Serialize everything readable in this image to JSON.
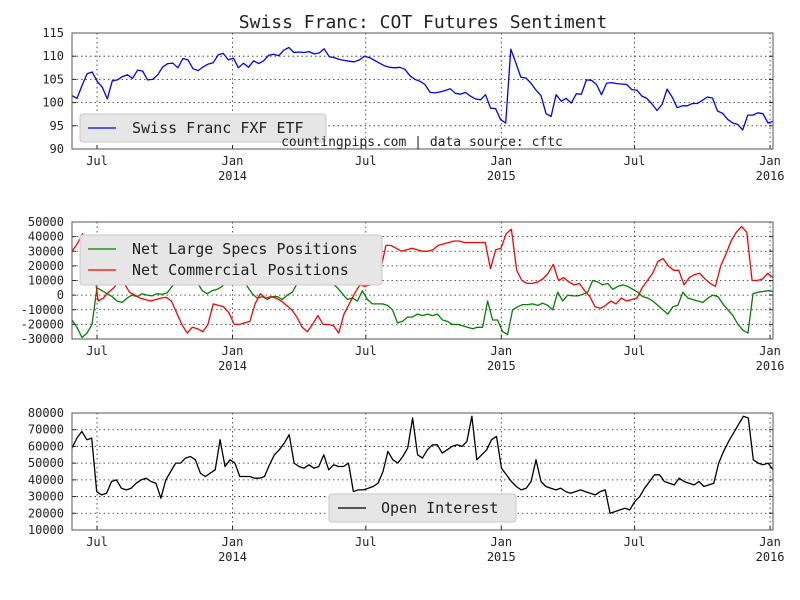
{
  "chart_data": {
    "type": "line",
    "title": "Swiss Franc: COT Futures Sentiment",
    "source_note": "countingpips.com | data source: cftc",
    "grid": true,
    "x_domain": [
      "2013-05-28",
      "2016-01-05"
    ],
    "x_ticks": [
      {
        "date": "2013-07-01",
        "label": "Jul",
        "sublabel": ""
      },
      {
        "date": "2014-01-01",
        "label": "Jan",
        "sublabel": "2014"
      },
      {
        "date": "2014-07-01",
        "label": "Jul",
        "sublabel": ""
      },
      {
        "date": "2015-01-01",
        "label": "Jan",
        "sublabel": "2015"
      },
      {
        "date": "2015-07-01",
        "label": "Jul",
        "sublabel": ""
      },
      {
        "date": "2016-01-01",
        "label": "Jan",
        "sublabel": "2016"
      }
    ],
    "panels": [
      {
        "id": "price",
        "ylim": [
          90,
          115
        ],
        "yticks": [
          90,
          95,
          100,
          105,
          110,
          115
        ],
        "legend_position": "lower-left",
        "series": [
          {
            "name": "Swiss Franc FXF ETF",
            "color": "#0000ff",
            "values": [
              101.5,
              100.9,
              103.7,
              106.2,
              106.6,
              104.6,
              103.3,
              100.8,
              104.7,
              104.9,
              105.6,
              106.0,
              105.2,
              107.0,
              106.8,
              104.9,
              105.0,
              106.0,
              107.7,
              108.4,
              108.5,
              107.5,
              109.5,
              109.2,
              107.3,
              106.9,
              107.7,
              108.3,
              108.6,
              110.3,
              110.6,
              109.2,
              109.6,
              107.5,
              108.5,
              107.6,
              109.0,
              108.4,
              109.0,
              110.2,
              110.4,
              110.1,
              111.3,
              111.9,
              110.8,
              110.9,
              110.8,
              111.0,
              110.5,
              110.7,
              111.6,
              109.9,
              109.7,
              109.3,
              109.1,
              108.9,
              108.8,
              109.2,
              110.0,
              109.7,
              109.1,
              108.5,
              107.9,
              107.6,
              107.5,
              107.6,
              107.2,
              105.8,
              105.0,
              104.6,
              103.9,
              102.2,
              102.1,
              102.3,
              102.6,
              103.0,
              102.0,
              101.8,
              102.2,
              101.4,
              100.8,
              100.6,
              101.7,
              98.8,
              98.7,
              96.3,
              95.6,
              111.5,
              108.6,
              105.5,
              105.3,
              104.2,
              102.7,
              101.5,
              97.6,
              97.0,
              101.7,
              100.3,
              100.9,
              99.9,
              101.9,
              101.8,
              104.9,
              104.8,
              103.9,
              101.7,
              104.2,
              104.3,
              104.1,
              104.0,
              103.9,
              102.8,
              102.7,
              101.4,
              100.9,
              99.7,
              98.3,
              99.6,
              102.9,
              101.2,
              98.9,
              99.3,
              99.3,
              99.8,
              99.8,
              100.5,
              101.2,
              101.0,
              98.2,
              97.7,
              96.4,
              95.6,
              95.3,
              94.1,
              97.3,
              97.3,
              97.8,
              97.6,
              95.6,
              96.0
            ]
          }
        ]
      },
      {
        "id": "positions",
        "ylim": [
          -30000,
          50000
        ],
        "yticks": [
          -30000,
          -20000,
          -10000,
          0,
          10000,
          20000,
          30000,
          40000,
          50000
        ],
        "legend_position": "upper-left",
        "series": [
          {
            "name": "Net Large Specs Positions",
            "color": "#008000",
            "values": [
              -17000,
              -22000,
              -29000,
              -26000,
              -20000,
              5000,
              3000,
              1000,
              -1000,
              -4000,
              -5000,
              -2000,
              0,
              -1000,
              1000,
              0,
              -500,
              1000,
              500,
              1500,
              6000,
              10000,
              14000,
              22000,
              16000,
              9000,
              3000,
              1000,
              3000,
              4000,
              6000,
              10000,
              14000,
              20000,
              14000,
              6000,
              1000,
              -2000,
              -1000,
              -3000,
              -1000,
              -1000,
              -3000,
              0,
              2000,
              8000,
              14000,
              19000,
              26000,
              30000,
              32000,
              18000,
              8000,
              5000,
              1000,
              -3000,
              -2000,
              -4000,
              3000,
              -3000,
              -6000,
              -6000,
              -6000,
              -7000,
              -10000,
              -19000,
              -18000,
              -15000,
              -15000,
              -13000,
              -14000,
              -13000,
              -14000,
              -13000,
              -17000,
              -18000,
              -20000,
              -20000,
              -21000,
              -22000,
              -23000,
              -22000,
              -22000,
              -4000,
              -17000,
              -17000,
              -25000,
              -27000,
              -10000,
              -8000,
              -6500,
              -6500,
              -6000,
              -7000,
              -5500,
              -7000,
              -10000,
              2000,
              -4000,
              0,
              -500,
              -500,
              500,
              2000,
              10000,
              9000,
              7000,
              8000,
              4000,
              6000,
              7000,
              6000,
              4000,
              2000,
              -1000,
              -2000,
              -4000,
              -7000,
              -10000,
              -13000,
              -8000,
              -7000,
              2000,
              -2000,
              -3000,
              -4000,
              -5000,
              -2000,
              0,
              -1000,
              -6000,
              -10000,
              -14000,
              -20000,
              -24000,
              -26000,
              1000,
              2000,
              2500,
              3000,
              2500
            ]
          },
          {
            "name": "Net Commercial Positions",
            "color": "#ff0000",
            "values": [
              30000,
              35000,
              42000,
              33000,
              24000,
              -4000,
              -2000,
              2000,
              5000,
              10000,
              8000,
              2000,
              0,
              -2000,
              -3000,
              -4000,
              -3000,
              -2000,
              -1500,
              -4000,
              -12000,
              -20000,
              -26000,
              -22000,
              -23000,
              -25000,
              -20000,
              -6000,
              -7000,
              -8000,
              -12000,
              -20000,
              -20000,
              -19000,
              -18000,
              -6000,
              1000,
              -2000,
              -1000,
              -2000,
              -4000,
              -7000,
              -10000,
              -15000,
              -22000,
              -25000,
              -20000,
              -14000,
              -20000,
              -20000,
              -21000,
              -26000,
              -13000,
              -6000,
              1000,
              7000,
              6000,
              7000,
              9000,
              17000,
              34000,
              34000,
              32000,
              30000,
              31000,
              32000,
              31000,
              30000,
              30000,
              31000,
              34000,
              35000,
              36000,
              37000,
              37000,
              36000,
              36000,
              36000,
              36000,
              36000,
              18000,
              31000,
              32000,
              42000,
              45000,
              17000,
              10000,
              8000,
              8000,
              9000,
              11000,
              15000,
              21000,
              10000,
              12000,
              9000,
              7000,
              8000,
              3000,
              -1000,
              -8000,
              -9000,
              -7000,
              -4000,
              -6000,
              -2000,
              -4000,
              -3000,
              -2000,
              5000,
              10000,
              15000,
              23000,
              25000,
              20000,
              17000,
              17000,
              7000,
              12000,
              14000,
              15000,
              11000,
              8000,
              6000,
              20000,
              28000,
              37000,
              43000,
              47000,
              43000,
              10000,
              10000,
              11000,
              15000,
              12000
            ]
          }
        ]
      },
      {
        "id": "open-interest",
        "ylim": [
          10000,
          80000
        ],
        "yticks": [
          10000,
          20000,
          30000,
          40000,
          50000,
          60000,
          70000,
          80000
        ],
        "legend_position": "lower-center",
        "series": [
          {
            "name": "Open Interest",
            "color": "#000000",
            "values": [
              59000,
              65000,
              69000,
              64000,
              65000,
              33000,
              31000,
              32000,
              39000,
              40000,
              35000,
              34000,
              35000,
              38000,
              40000,
              41000,
              39000,
              38000,
              29000,
              40000,
              45000,
              50000,
              50000,
              53000,
              54000,
              52000,
              44000,
              42000,
              44000,
              46000,
              64000,
              48000,
              52000,
              50000,
              42000,
              42000,
              42000,
              41000,
              41000,
              42000,
              49000,
              55000,
              58000,
              62000,
              67000,
              50000,
              48000,
              47000,
              49000,
              47000,
              48000,
              55000,
              46000,
              49000,
              48000,
              48000,
              50000,
              33000,
              34000,
              34000,
              35000,
              36000,
              38000,
              45000,
              57000,
              52000,
              50000,
              54000,
              59000,
              77000,
              55000,
              53000,
              58000,
              61000,
              61000,
              56000,
              58000,
              60000,
              61000,
              60000,
              63000,
              78000,
              52000,
              55000,
              58000,
              64000,
              66000,
              47000,
              43000,
              39000,
              36000,
              34000,
              35000,
              39000,
              52000,
              39000,
              36000,
              35000,
              34000,
              35000,
              33000,
              32000,
              33000,
              34000,
              33000,
              32000,
              31000,
              33000,
              34000,
              20000,
              21000,
              22000,
              23000,
              22000,
              27000,
              30000,
              35000,
              39000,
              43000,
              43000,
              39000,
              38000,
              37000,
              41000,
              39000,
              38000,
              37000,
              39000,
              36000,
              37000,
              38000,
              50000,
              57000,
              63000,
              68000,
              73000,
              78000,
              77000,
              52000,
              50000,
              49000,
              50000,
              46000
            ]
          }
        ]
      }
    ]
  }
}
